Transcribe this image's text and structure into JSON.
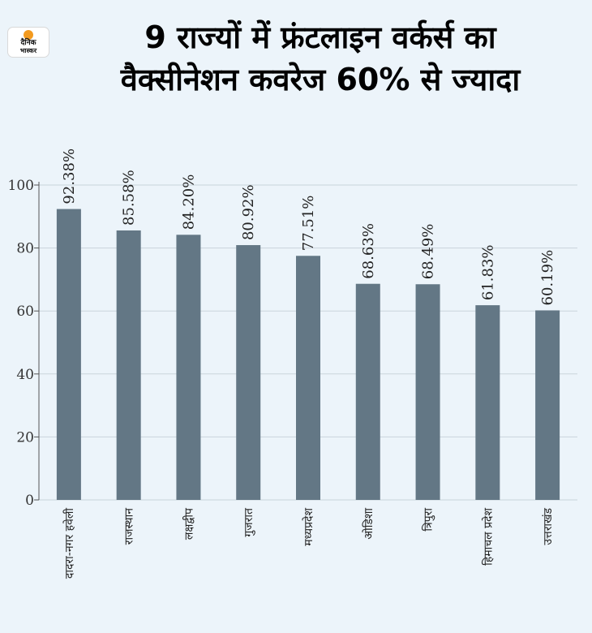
{
  "logo": {
    "line1": "दैनिक",
    "line2": "भास्कर"
  },
  "header": {
    "title_line1": "9 राज्यों में फ्रंटलाइन वर्कर्स का",
    "title_line2": "वैक्सीनेशन कवरेज 60% से ज्यादा"
  },
  "colors": {
    "bar": "#637785",
    "grid": "#c9d3db",
    "background": "#ecf4fa",
    "logo_accent": "#f39a1e"
  },
  "chart_data": {
    "type": "bar",
    "categories": [
      "दादरा-नगर हवेली",
      "राजस्थान",
      "लक्षद्वीप",
      "गुजरात",
      "मध्यप्रदेश",
      "ओडिशा",
      "त्रिपुरा",
      "हिमाचल प्रदेश",
      "उत्तराखंड"
    ],
    "values": [
      92.38,
      85.58,
      84.2,
      80.92,
      77.51,
      68.63,
      68.49,
      61.83,
      60.19
    ],
    "data_labels": [
      "92.38%",
      "85.58%",
      "84.20%",
      "80.92%",
      "77.51%",
      "68.63%",
      "68.49%",
      "61.83%",
      "60.19%"
    ],
    "y_ticks": [
      0,
      20,
      40,
      60,
      80,
      100
    ],
    "ylim": [
      0,
      100
    ],
    "grid": true,
    "title": "9 राज्यों में फ्रंटलाइन वर्कर्स का वैक्सीनेशन कवरेज 60% से ज्यादा"
  }
}
